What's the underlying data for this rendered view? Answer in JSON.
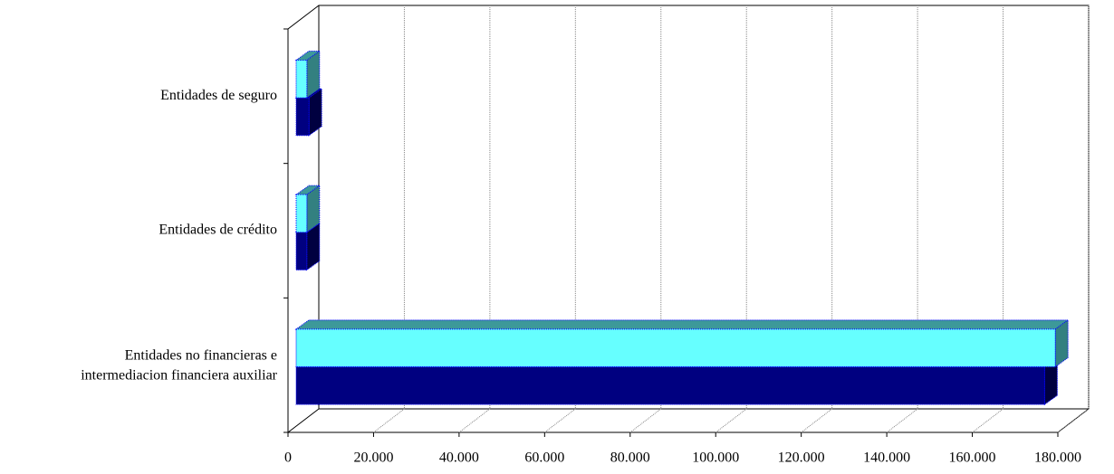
{
  "chart_data": {
    "type": "bar3d_horizontal",
    "categories": [
      "Entidades no financieras e intermediacion financiera auxiliar",
      "Entidades de crédito",
      "Entidades de seguro"
    ],
    "series": [
      {
        "color": "#000080",
        "values": [
          175000,
          2500,
          3000
        ]
      },
      {
        "color": "#66FFFF",
        "values": [
          177500,
          2500,
          2500
        ]
      }
    ],
    "xlim": [
      0,
      180000
    ],
    "xticks": [
      0,
      {
        "value": 20000,
        "label": "20.000"
      },
      {
        "value": 40000,
        "label": "40.000"
      },
      {
        "value": 60000,
        "label": "60.000"
      },
      {
        "value": 80000,
        "label": "80.000"
      },
      {
        "value": 100000,
        "label": "100.000"
      },
      {
        "value": 120000,
        "label": "120.000"
      },
      {
        "value": 140000,
        "label": "140.000"
      },
      {
        "value": 160000,
        "label": "160.000"
      },
      {
        "value": 180000,
        "label": "180.000"
      }
    ],
    "grid": true
  }
}
